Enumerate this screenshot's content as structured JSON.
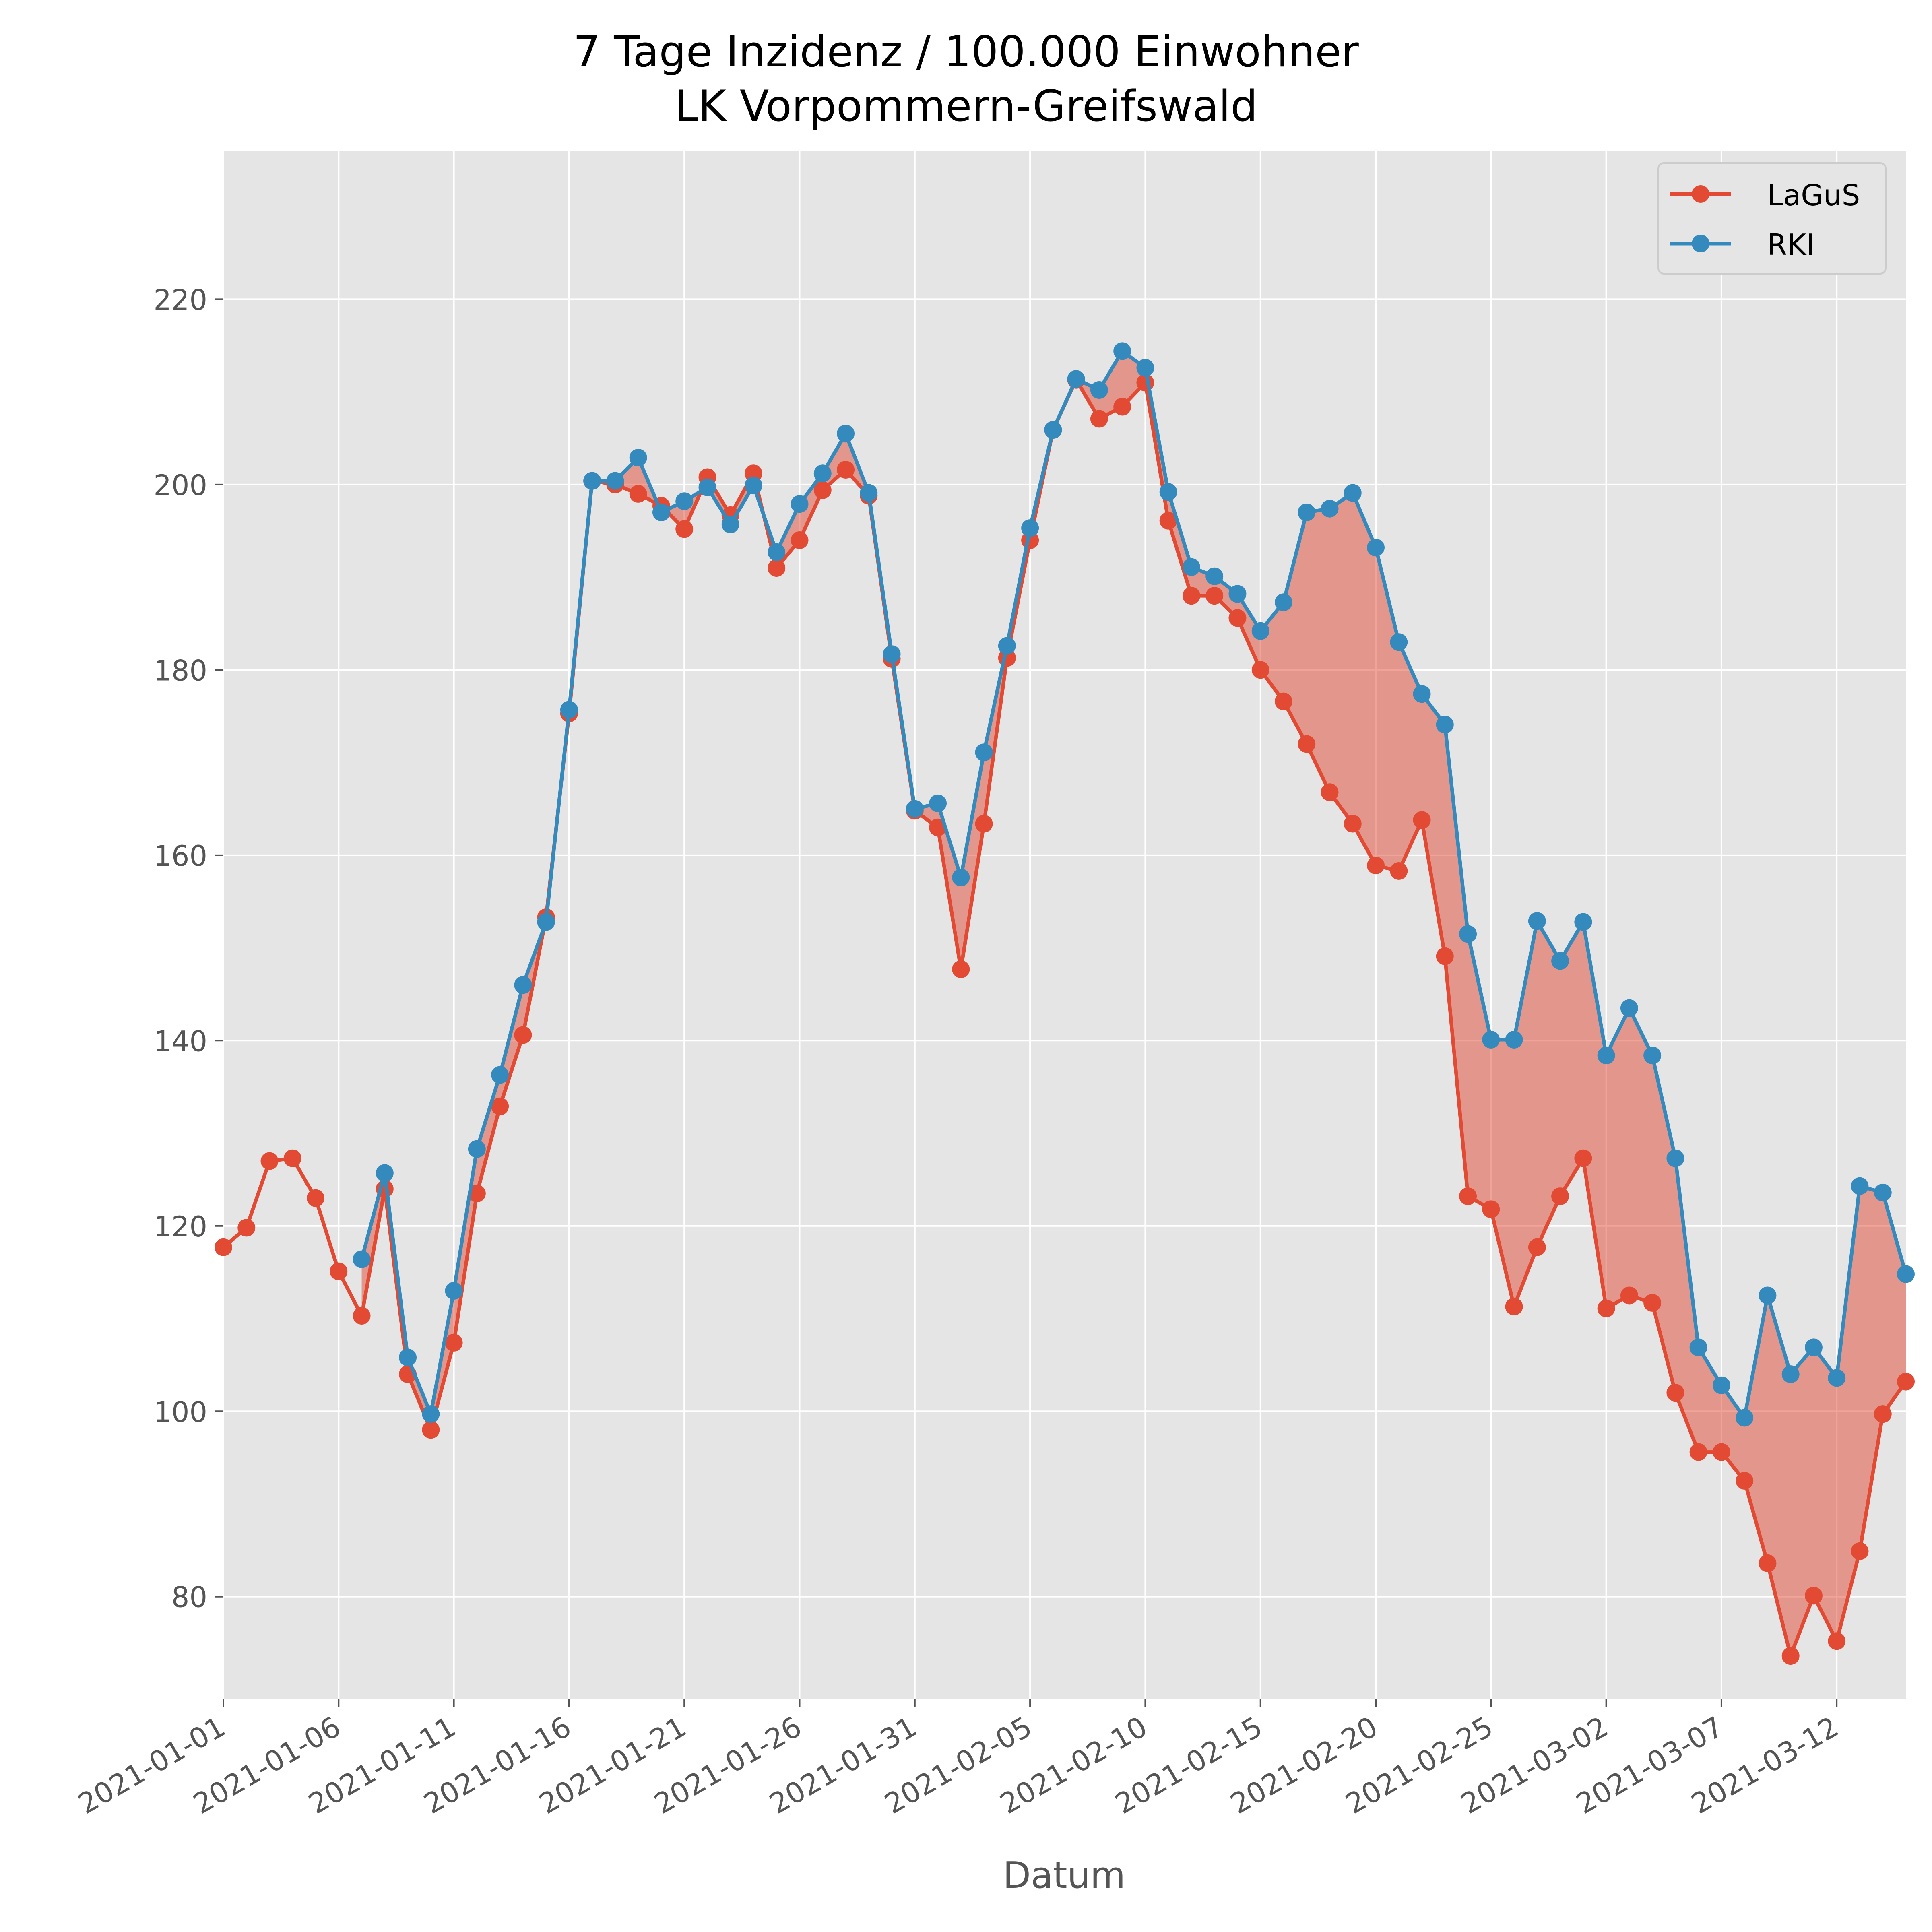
{
  "chart_data": {
    "type": "line",
    "title": "7 Tage Inzidenz / 100.000 Einwohner",
    "subtitle": "LK Vorpommern-Greifswald",
    "xlabel": "Datum",
    "ylabel": "",
    "x_start": "2021-01-01",
    "x_end": "2021-03-15",
    "xlim": [
      "2021-01-01",
      "2021-03-15"
    ],
    "ylim": [
      69,
      236
    ],
    "grid": true,
    "legend_position": "top-right",
    "xticks": [
      "2021-01-01",
      "2021-01-06",
      "2021-01-11",
      "2021-01-16",
      "2021-01-21",
      "2021-01-26",
      "2021-01-31",
      "2021-02-05",
      "2021-02-10",
      "2021-02-15",
      "2021-02-20",
      "2021-02-25",
      "2021-03-02",
      "2021-03-07",
      "2021-03-12"
    ],
    "yticks": [
      80,
      100,
      120,
      140,
      160,
      180,
      200,
      220
    ],
    "fill_between": {
      "series": [
        "LaGuS",
        "RKI"
      ],
      "color": "#E24A33",
      "opacity": 0.5
    },
    "series": [
      {
        "name": "LaGuS",
        "color": "#E24A33",
        "x": [
          "2021-01-01",
          "2021-01-02",
          "2021-01-03",
          "2021-01-04",
          "2021-01-05",
          "2021-01-06",
          "2021-01-07",
          "2021-01-08",
          "2021-01-09",
          "2021-01-10",
          "2021-01-11",
          "2021-01-12",
          "2021-01-13",
          "2021-01-14",
          "2021-01-15",
          "2021-01-16",
          "2021-01-17",
          "2021-01-18",
          "2021-01-19",
          "2021-01-20",
          "2021-01-21",
          "2021-01-22",
          "2021-01-23",
          "2021-01-24",
          "2021-01-25",
          "2021-01-26",
          "2021-01-27",
          "2021-01-28",
          "2021-01-29",
          "2021-01-30",
          "2021-01-31",
          "2021-02-01",
          "2021-02-02",
          "2021-02-03",
          "2021-02-04",
          "2021-02-05",
          "2021-02-06",
          "2021-02-07",
          "2021-02-08",
          "2021-02-09",
          "2021-02-10",
          "2021-02-11",
          "2021-02-12",
          "2021-02-13",
          "2021-02-14",
          "2021-02-15",
          "2021-02-16",
          "2021-02-17",
          "2021-02-18",
          "2021-02-19",
          "2021-02-20",
          "2021-02-21",
          "2021-02-22",
          "2021-02-23",
          "2021-02-24",
          "2021-02-25",
          "2021-02-26",
          "2021-02-27",
          "2021-02-28",
          "2021-03-01",
          "2021-03-02",
          "2021-03-03",
          "2021-03-04",
          "2021-03-05",
          "2021-03-06",
          "2021-03-07",
          "2021-03-08",
          "2021-03-09",
          "2021-03-10",
          "2021-03-11",
          "2021-03-12",
          "2021-03-13",
          "2021-03-14",
          "2021-03-15"
        ],
        "values": [
          117.7,
          119.8,
          127.0,
          127.3,
          123.0,
          115.1,
          110.3,
          124.0,
          104.0,
          98.0,
          107.4,
          123.5,
          132.9,
          140.6,
          153.3,
          175.3,
          200.4,
          200.0,
          199.0,
          197.7,
          195.2,
          200.8,
          196.7,
          201.2,
          191.0,
          194.0,
          199.4,
          201.6,
          198.8,
          181.2,
          164.8,
          163.0,
          147.7,
          163.4,
          181.3,
          194.0,
          205.9,
          211.3,
          207.1,
          208.4,
          211.0,
          196.1,
          188.0,
          188.0,
          185.6,
          180.0,
          176.6,
          172.0,
          166.8,
          163.4,
          158.9,
          158.3,
          163.8,
          149.1,
          123.2,
          121.8,
          111.3,
          117.7,
          123.2,
          127.3,
          111.1,
          112.5,
          111.7,
          102.0,
          95.6,
          95.6,
          92.5,
          83.6,
          73.6,
          80.1,
          75.2,
          84.9,
          99.7,
          103.2
        ]
      },
      {
        "name": "RKI",
        "color": "#348ABD",
        "x": [
          "2021-01-07",
          "2021-01-08",
          "2021-01-09",
          "2021-01-10",
          "2021-01-11",
          "2021-01-12",
          "2021-01-13",
          "2021-01-14",
          "2021-01-15",
          "2021-01-16",
          "2021-01-17",
          "2021-01-18",
          "2021-01-19",
          "2021-01-20",
          "2021-01-21",
          "2021-01-22",
          "2021-01-23",
          "2021-01-24",
          "2021-01-25",
          "2021-01-26",
          "2021-01-27",
          "2021-01-28",
          "2021-01-29",
          "2021-01-30",
          "2021-01-31",
          "2021-02-01",
          "2021-02-02",
          "2021-02-03",
          "2021-02-04",
          "2021-02-05",
          "2021-02-06",
          "2021-02-07",
          "2021-02-08",
          "2021-02-09",
          "2021-02-10",
          "2021-02-11",
          "2021-02-12",
          "2021-02-13",
          "2021-02-14",
          "2021-02-15",
          "2021-02-16",
          "2021-02-17",
          "2021-02-18",
          "2021-02-19",
          "2021-02-20",
          "2021-02-21",
          "2021-02-22",
          "2021-02-23",
          "2021-02-24",
          "2021-02-25",
          "2021-02-26",
          "2021-02-27",
          "2021-02-28",
          "2021-03-01",
          "2021-03-02",
          "2021-03-03",
          "2021-03-04",
          "2021-03-05",
          "2021-03-06",
          "2021-03-07",
          "2021-03-08",
          "2021-03-09",
          "2021-03-10",
          "2021-03-11",
          "2021-03-12",
          "2021-03-13",
          "2021-03-14",
          "2021-03-15"
        ],
        "values": [
          116.4,
          125.7,
          105.8,
          99.7,
          113.0,
          128.3,
          136.3,
          146.0,
          152.8,
          175.7,
          200.4,
          200.4,
          202.9,
          197.0,
          198.2,
          199.7,
          195.7,
          199.9,
          192.7,
          197.9,
          201.2,
          205.5,
          199.1,
          181.7,
          165.0,
          165.6,
          157.6,
          171.1,
          182.6,
          195.3,
          205.9,
          211.4,
          210.2,
          214.4,
          212.6,
          199.2,
          191.1,
          190.1,
          188.2,
          184.2,
          187.3,
          197.0,
          197.4,
          199.1,
          193.2,
          183.0,
          177.4,
          174.1,
          151.5,
          140.1,
          140.1,
          152.9,
          148.6,
          152.8,
          138.4,
          143.5,
          138.4,
          127.3,
          106.9,
          102.8,
          99.3,
          112.5,
          104.0,
          106.9,
          103.6,
          124.3,
          123.6,
          114.8
        ]
      }
    ]
  }
}
